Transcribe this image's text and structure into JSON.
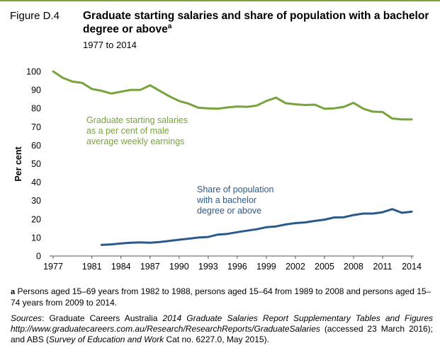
{
  "figure_label": "Figure D.4",
  "title": "Graduate starting salaries and share of population with a bachelor degree or above",
  "title_superscript": "a",
  "subtitle": "1977 to 2014",
  "chart_data": {
    "type": "line",
    "ylabel": "Per cent",
    "xlabel": "",
    "ylim": [
      0,
      100
    ],
    "xlim": [
      1977,
      2014
    ],
    "y_ticks": [
      0,
      10,
      20,
      30,
      40,
      50,
      60,
      70,
      80,
      90,
      100
    ],
    "x_ticks": [
      1977,
      1981,
      1984,
      1987,
      1990,
      1993,
      1996,
      1999,
      2002,
      2005,
      2008,
      2011,
      2014
    ],
    "series": [
      {
        "name": "Graduate starting salaries as a per cent of male average weekly earnings",
        "label_lines": [
          "Graduate starting salaries",
          "as a per cent of male",
          "average weekly earnings"
        ],
        "color": "#77a33c",
        "x": [
          1977,
          1978,
          1979,
          1980,
          1981,
          1982,
          1983,
          1984,
          1985,
          1986,
          1987,
          1988,
          1989,
          1990,
          1991,
          1992,
          1993,
          1994,
          1995,
          1996,
          1997,
          1998,
          1999,
          2000,
          2001,
          2002,
          2003,
          2004,
          2005,
          2006,
          2007,
          2008,
          2009,
          2010,
          2011,
          2012,
          2013,
          2014
        ],
        "values": [
          100,
          96.5,
          94.5,
          93.8,
          90.5,
          89.5,
          88,
          89,
          90,
          90,
          92.5,
          89.5,
          86.5,
          84,
          82.5,
          80.3,
          80,
          79.8,
          80.5,
          81,
          80.8,
          81.5,
          84,
          85.8,
          82.8,
          82.2,
          81.8,
          82,
          79.8,
          80,
          80.8,
          83,
          79.8,
          78.2,
          78,
          74.5,
          74,
          74
        ]
      },
      {
        "name": "Share of population with a bachelor degree or above",
        "label_lines": [
          "Share of population",
          "with a bachelor",
          "degree or above"
        ],
        "color": "#2a5a8c",
        "x": [
          1982,
          1983,
          1984,
          1985,
          1986,
          1987,
          1988,
          1989,
          1990,
          1991,
          1992,
          1993,
          1994,
          1995,
          1996,
          1997,
          1998,
          1999,
          2000,
          2001,
          2002,
          2003,
          2004,
          2005,
          2006,
          2007,
          2008,
          2009,
          2010,
          2011,
          2012,
          2013,
          2014
        ],
        "values": [
          6,
          6.3,
          6.8,
          7.2,
          7.4,
          7.2,
          7.6,
          8.2,
          8.8,
          9.4,
          10,
          10.3,
          11.6,
          12,
          12.9,
          13.7,
          14.5,
          15.6,
          16,
          17.1,
          17.8,
          18.2,
          19,
          19.7,
          20.9,
          21,
          22.2,
          23,
          23,
          23.7,
          25.4,
          23.4,
          24
        ]
      }
    ]
  },
  "footnote": {
    "marker": "a",
    "text": "Persons aged 15–69 years from 1982 to 1988, persons aged 15–64 from 1989 to 2008 and persons aged 15–74 years from 2009 to 2014."
  },
  "sources": {
    "label": "Sources",
    "part1": ": Graduate Careers Australia ",
    "report": "2014 Graduate Salaries Report Supplementary Tables and Figures http://www.graduatecareers.com.au/Research/ResearchReports/GraduateSalaries",
    "part2": " (accessed 23 March 2016); and ABS (",
    "survey": "Survey of Education and Work",
    "part3": " Cat no. 6227.0, May 2015)."
  }
}
